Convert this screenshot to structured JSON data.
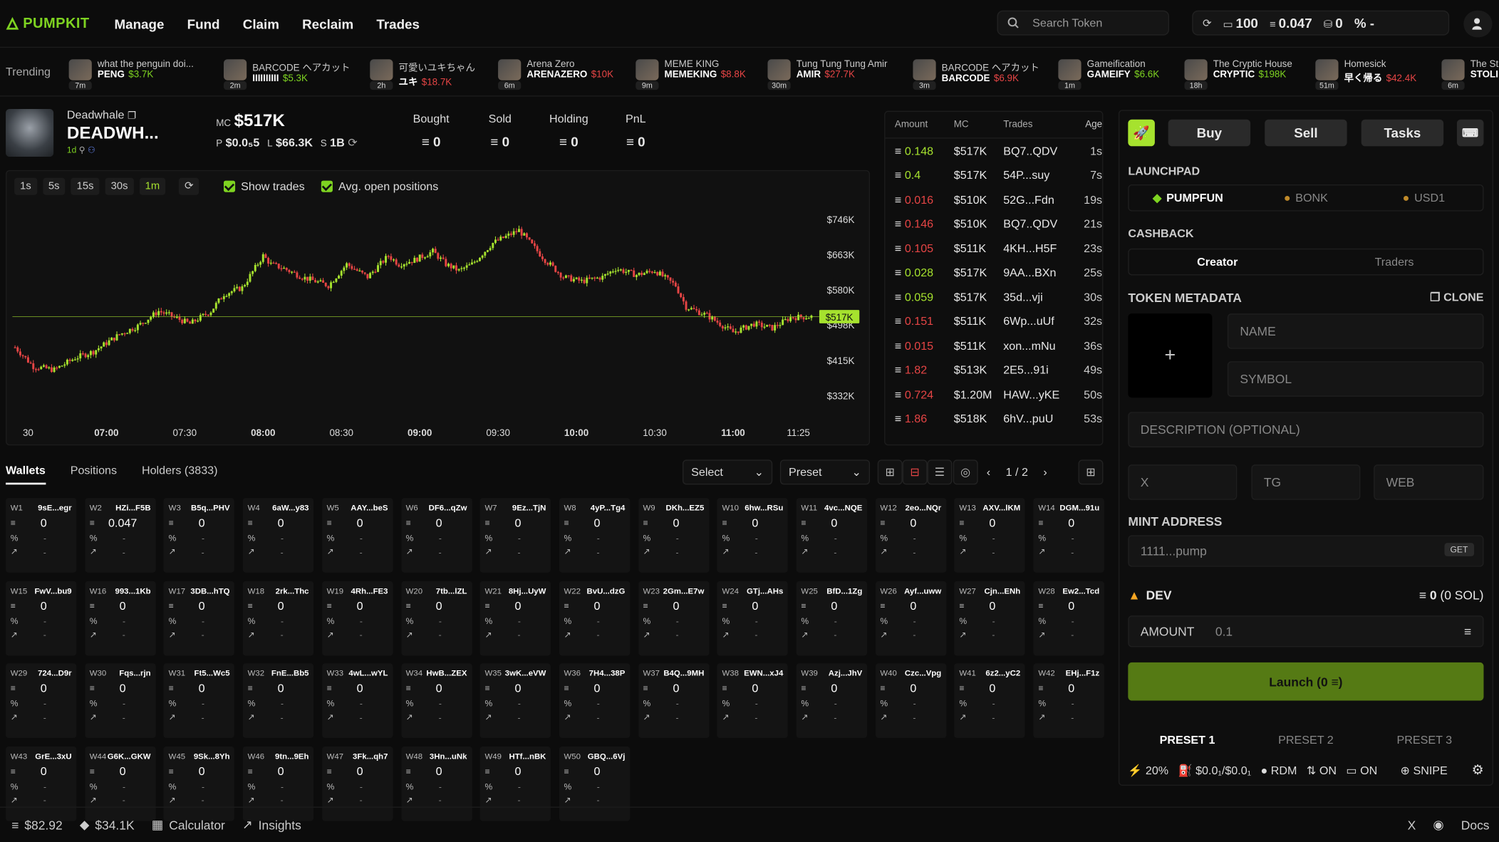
{
  "app": {
    "logo": "PUMPKIT",
    "accent": "#7ed321"
  },
  "nav": [
    "Manage",
    "Fund",
    "Claim",
    "Reclaim",
    "Trades"
  ],
  "search": {
    "placeholder": "Search Token"
  },
  "header_stats": {
    "sol": "100",
    "balance": "0.047",
    "coins": "0",
    "pct": "%",
    "dash": "-"
  },
  "trending": {
    "label": "Trending",
    "items": [
      {
        "name": "what the penguin doi...",
        "age": "7m",
        "ticker": "PENG",
        "mc": "$3.7K",
        "up": true
      },
      {
        "name": "BARCODE ヘアカット",
        "age": "2m",
        "ticker": "IIIIIIIIII",
        "mc": "$5.3K",
        "up": true
      },
      {
        "name": "可愛いユキちゃん",
        "age": "2h",
        "ticker": "ユキ",
        "mc": "$18.7K",
        "up": false
      },
      {
        "name": "Arena Zero",
        "age": "6m",
        "ticker": "ARENAZERO",
        "mc": "$10K",
        "up": false
      },
      {
        "name": "MEME KING",
        "age": "9m",
        "ticker": "MEMEKING",
        "mc": "$8.8K",
        "up": false
      },
      {
        "name": "Tung Tung Tung Amir",
        "age": "30m",
        "ticker": "AMIR",
        "mc": "$27.7K",
        "up": false
      },
      {
        "name": "BARCODE ヘアカット",
        "age": "3m",
        "ticker": "BARCODE",
        "mc": "$6.9K",
        "up": false
      },
      {
        "name": "Gameification",
        "age": "1m",
        "ticker": "GAMEIFY",
        "mc": "$6.6K",
        "up": true
      },
      {
        "name": "The Cryptic House",
        "age": "18h",
        "ticker": "CRYPTIC",
        "mc": "$198K",
        "up": true
      },
      {
        "name": "Homesick",
        "age": "51m",
        "ticker": "早く帰る",
        "mc": "$42.4K",
        "up": false
      },
      {
        "name": "The St",
        "age": "6m",
        "ticker": "STOLI",
        "mc": "",
        "up": true
      }
    ]
  },
  "token": {
    "owner": "Deadwhale",
    "name": "DEADWH...",
    "age": "1d",
    "mc_label": "MC",
    "mc": "$517K",
    "price_label": "P",
    "price": "$0.0₅5",
    "liq_label": "L",
    "liq": "$66.3K",
    "supply_label": "S",
    "supply": "1B",
    "stats": [
      {
        "label": "Bought",
        "value": "0"
      },
      {
        "label": "Sold",
        "value": "0"
      },
      {
        "label": "Holding",
        "value": "0"
      },
      {
        "label": "PnL",
        "value": "0"
      }
    ]
  },
  "chart_controls": {
    "timeframes": [
      "1s",
      "5s",
      "15s",
      "30s",
      "1m"
    ],
    "active": "1m",
    "show_trades": "Show trades",
    "avg_open": "Avg. open positions"
  },
  "chart_data": {
    "type": "candlestick",
    "current_price_label": "$517K",
    "current": 517,
    "y_ticks": [
      "$746K",
      "$663K",
      "$580K",
      "$498K",
      "$415K",
      "$332K"
    ],
    "y_tick_values": [
      746,
      663,
      580,
      498,
      415,
      332
    ],
    "x_ticks": [
      {
        "label": "30",
        "bold": false
      },
      {
        "label": "07:00",
        "bold": true
      },
      {
        "label": "07:30",
        "bold": false
      },
      {
        "label": "08:00",
        "bold": true
      },
      {
        "label": "08:30",
        "bold": false
      },
      {
        "label": "09:00",
        "bold": true
      },
      {
        "label": "09:30",
        "bold": false
      },
      {
        "label": "10:00",
        "bold": true
      },
      {
        "label": "10:30",
        "bold": false
      },
      {
        "label": "11:00",
        "bold": true
      },
      {
        "label": "11:25",
        "bold": false
      }
    ],
    "x_tick_minutes": [
      -30,
      0,
      30,
      60,
      90,
      120,
      150,
      180,
      210,
      240,
      265
    ],
    "path_minutes": [
      -35,
      -28,
      -20,
      -12,
      -5,
      5,
      12,
      20,
      25,
      32,
      40,
      45,
      52,
      60,
      63,
      68,
      75,
      85,
      92,
      100,
      108,
      112,
      118,
      125,
      130,
      135,
      140,
      148,
      158,
      168,
      175,
      182,
      190,
      195,
      203,
      210,
      218,
      222,
      230,
      240,
      248,
      255,
      262,
      270
    ],
    "path_values": [
      445,
      400,
      392,
      420,
      435,
      475,
      495,
      530,
      518,
      500,
      530,
      570,
      585,
      660,
      640,
      630,
      610,
      590,
      640,
      610,
      660,
      640,
      650,
      670,
      640,
      625,
      640,
      690,
      720,
      650,
      610,
      600,
      610,
      630,
      615,
      625,
      590,
      540,
      520,
      480,
      500,
      490,
      515,
      517
    ]
  },
  "trades_table": {
    "headers": [
      "Amount",
      "MC",
      "Trades",
      "Age"
    ],
    "rows": [
      {
        "amount": "0.148",
        "buy": true,
        "mc": "$517K",
        "trader": "BQ7..QDV",
        "age": "1s"
      },
      {
        "amount": "0.4",
        "buy": true,
        "mc": "$517K",
        "trader": "54P...suy",
        "age": "7s"
      },
      {
        "amount": "0.016",
        "buy": false,
        "mc": "$510K",
        "trader": "52G...Fdn",
        "age": "19s"
      },
      {
        "amount": "0.146",
        "buy": false,
        "mc": "$510K",
        "trader": "BQ7..QDV",
        "age": "21s"
      },
      {
        "amount": "0.105",
        "buy": false,
        "mc": "$511K",
        "trader": "4KH...H5F",
        "age": "23s"
      },
      {
        "amount": "0.028",
        "buy": true,
        "mc": "$517K",
        "trader": "9AA...BXn",
        "age": "25s"
      },
      {
        "amount": "0.059",
        "buy": true,
        "mc": "$517K",
        "trader": "35d...vji",
        "age": "30s"
      },
      {
        "amount": "0.151",
        "buy": false,
        "mc": "$511K",
        "trader": "6Wp...uUf",
        "age": "32s"
      },
      {
        "amount": "0.015",
        "buy": false,
        "mc": "$511K",
        "trader": "xon...mNu",
        "age": "36s"
      },
      {
        "amount": "1.82",
        "buy": false,
        "mc": "$513K",
        "trader": "2E5...91i",
        "age": "49s"
      },
      {
        "amount": "0.724",
        "buy": false,
        "mc": "$1.20M",
        "trader": "HAW...yKE",
        "age": "50s"
      },
      {
        "amount": "1.86",
        "buy": false,
        "mc": "$518K",
        "trader": "6hV...puU",
        "age": "53s"
      }
    ]
  },
  "wallet_tabs": [
    "Wallets",
    "Positions",
    "Holders (3833)"
  ],
  "wallet_controls": {
    "select": "Select",
    "preset": "Preset",
    "page": "1 / 2"
  },
  "wallets": [
    {
      "id": "W1",
      "addr": "9sE...egr",
      "bal": "0"
    },
    {
      "id": "W2",
      "addr": "HZi...F5B",
      "bal": "0.047"
    },
    {
      "id": "W3",
      "addr": "B5q...PHV",
      "bal": "0"
    },
    {
      "id": "W4",
      "addr": "6aW...y83",
      "bal": "0"
    },
    {
      "id": "W5",
      "addr": "AAY...beS",
      "bal": "0"
    },
    {
      "id": "W6",
      "addr": "DF6...qZw",
      "bal": "0"
    },
    {
      "id": "W7",
      "addr": "9Ez...TjN",
      "bal": "0"
    },
    {
      "id": "W8",
      "addr": "4yP...Tg4",
      "bal": "0"
    },
    {
      "id": "W9",
      "addr": "DKh...EZ5",
      "bal": "0"
    },
    {
      "id": "W10",
      "addr": "6hw...RSu",
      "bal": "0"
    },
    {
      "id": "W11",
      "addr": "4vc...NQE",
      "bal": "0"
    },
    {
      "id": "W12",
      "addr": "2eo...NQr",
      "bal": "0"
    },
    {
      "id": "W13",
      "addr": "AXV...lKM",
      "bal": "0"
    },
    {
      "id": "W14",
      "addr": "DGM...91u",
      "bal": "0"
    },
    {
      "id": "W15",
      "addr": "FwV...bu9",
      "bal": "0"
    },
    {
      "id": "W16",
      "addr": "993...1Kb",
      "bal": "0"
    },
    {
      "id": "W17",
      "addr": "3DB...hTQ",
      "bal": "0"
    },
    {
      "id": "W18",
      "addr": "2rk...Thc",
      "bal": "0"
    },
    {
      "id": "W19",
      "addr": "4Rh...FE3",
      "bal": "0"
    },
    {
      "id": "W20",
      "addr": "7tb...lZL",
      "bal": "0"
    },
    {
      "id": "W21",
      "addr": "8Hj...UyW",
      "bal": "0"
    },
    {
      "id": "W22",
      "addr": "BvU...dzG",
      "bal": "0"
    },
    {
      "id": "W23",
      "addr": "2Gm...E7w",
      "bal": "0"
    },
    {
      "id": "W24",
      "addr": "GTj...AHs",
      "bal": "0"
    },
    {
      "id": "W25",
      "addr": "BfD...1Zg",
      "bal": "0"
    },
    {
      "id": "W26",
      "addr": "Ayf...uww",
      "bal": "0"
    },
    {
      "id": "W27",
      "addr": "Cjn...ENh",
      "bal": "0"
    },
    {
      "id": "W28",
      "addr": "Ew2...Tcd",
      "bal": "0"
    },
    {
      "id": "W29",
      "addr": "724...D9r",
      "bal": "0"
    },
    {
      "id": "W30",
      "addr": "Fqs...rjn",
      "bal": "0"
    },
    {
      "id": "W31",
      "addr": "Ft5...Wc5",
      "bal": "0"
    },
    {
      "id": "W32",
      "addr": "FnE...Bb5",
      "bal": "0"
    },
    {
      "id": "W33",
      "addr": "4wL...wYL",
      "bal": "0"
    },
    {
      "id": "W34",
      "addr": "HwB...ZEX",
      "bal": "0"
    },
    {
      "id": "W35",
      "addr": "3wK...eVW",
      "bal": "0"
    },
    {
      "id": "W36",
      "addr": "7H4...38P",
      "bal": "0"
    },
    {
      "id": "W37",
      "addr": "B4Q...9MH",
      "bal": "0"
    },
    {
      "id": "W38",
      "addr": "EWN...xJ4",
      "bal": "0"
    },
    {
      "id": "W39",
      "addr": "Azj...JhV",
      "bal": "0"
    },
    {
      "id": "W40",
      "addr": "Czc...Vpg",
      "bal": "0"
    },
    {
      "id": "W41",
      "addr": "6z2...yC2",
      "bal": "0"
    },
    {
      "id": "W42",
      "addr": "EHj...F1z",
      "bal": "0"
    },
    {
      "id": "W43",
      "addr": "GrE...3xU",
      "bal": "0"
    },
    {
      "id": "W44",
      "addr": "G6K...GKW",
      "bal": "0"
    },
    {
      "id": "W45",
      "addr": "9Sk...8Yh",
      "bal": "0"
    },
    {
      "id": "W46",
      "addr": "9tn...9Eh",
      "bal": "0"
    },
    {
      "id": "W47",
      "addr": "3Fk...qh7",
      "bal": "0"
    },
    {
      "id": "W48",
      "addr": "3Hn...uNk",
      "bal": "0"
    },
    {
      "id": "W49",
      "addr": "HTf...nBK",
      "bal": "0"
    },
    {
      "id": "W50",
      "addr": "GBQ...6Vj",
      "bal": "0"
    }
  ],
  "wallet_row_labels": {
    "pct_value": "-",
    "pnl_value": "-"
  },
  "sidebar": {
    "buy": "Buy",
    "sell": "Sell",
    "tasks": "Tasks",
    "launchpad_label": "LAUNCHPAD",
    "launchpads": [
      "PUMPFUN",
      "BONK",
      "USD1"
    ],
    "cashback_label": "CASHBACK",
    "cashback": [
      "Creator",
      "Traders"
    ],
    "metadata_label": "TOKEN METADATA",
    "clone": "CLONE",
    "image_plus": "+",
    "name_ph": "NAME",
    "symbol_ph": "SYMBOL",
    "desc_ph": "DESCRIPTION (OPTIONAL)",
    "x_ph": "X",
    "tg_ph": "TG",
    "web_ph": "WEB",
    "mint_label": "MINT ADDRESS",
    "mint_ph": "1111...pump",
    "get": "GET",
    "dev_label": "DEV",
    "dev_balance": "0",
    "dev_sol": "(0 SOL)",
    "amount_label": "AMOUNT",
    "amount_value": "0.1",
    "launch": "Launch (0 ≡)",
    "presets": [
      "PRESET 1",
      "PRESET 2",
      "PRESET 3"
    ],
    "preset_info": {
      "slippage": "20%",
      "fee": "$0.0₁/$0.0₁",
      "rdm": "RDM",
      "mev": "ON",
      "jito": "ON",
      "snipe": "SNIPE"
    }
  },
  "footer": {
    "sol_price": "$82.92",
    "volume": "$34.1K",
    "calculator": "Calculator",
    "insights": "Insights",
    "x": "X",
    "docs": "Docs"
  }
}
